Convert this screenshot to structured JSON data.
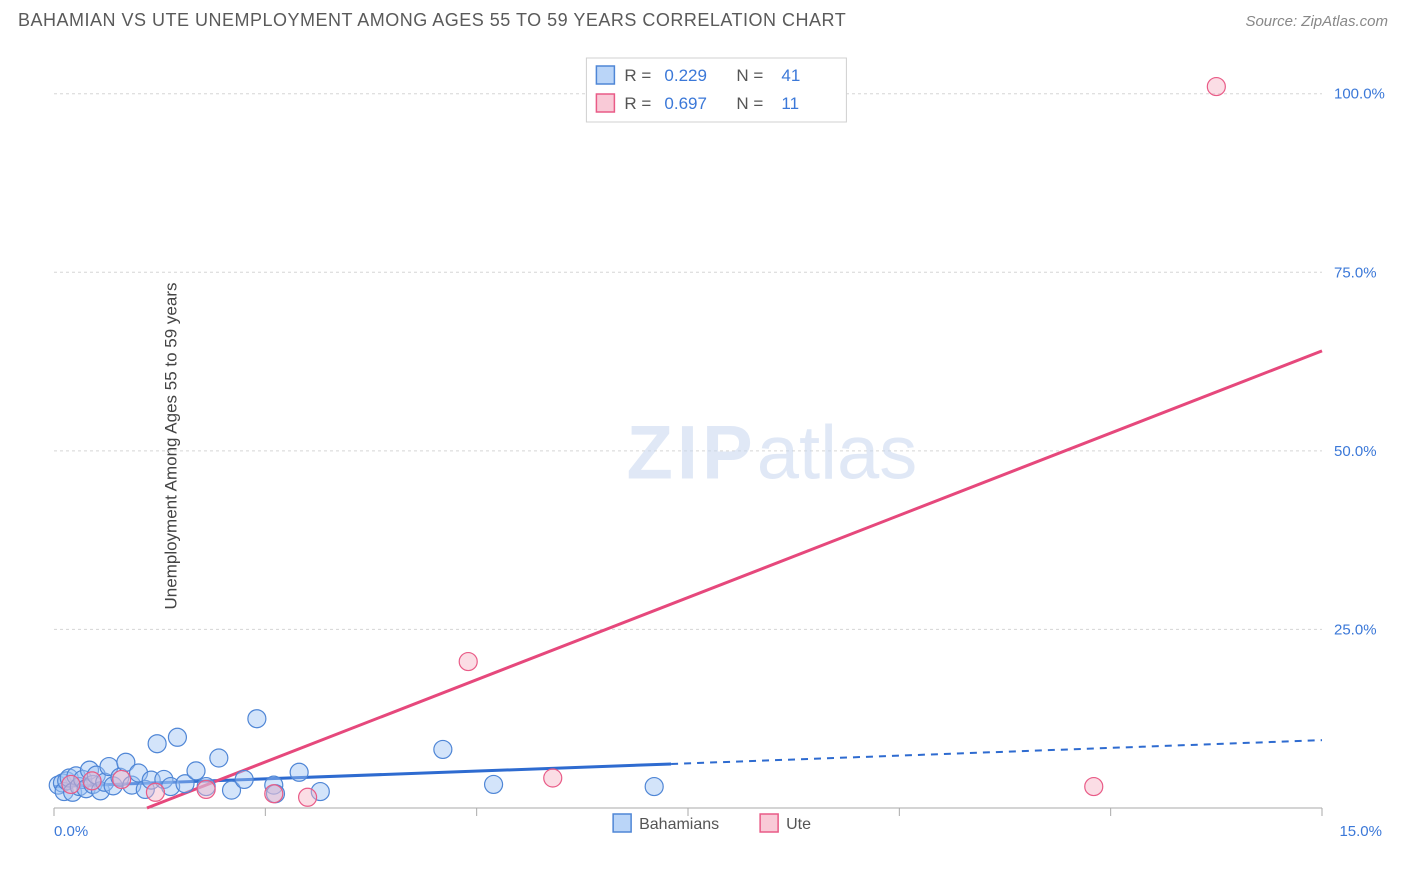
{
  "title": "BAHAMIAN VS UTE UNEMPLOYMENT AMONG AGES 55 TO 59 YEARS CORRELATION CHART",
  "source": "Source: ZipAtlas.com",
  "y_axis_label": "Unemployment Among Ages 55 to 59 years",
  "watermark": {
    "bold": "ZIP",
    "light": "atlas"
  },
  "chart": {
    "type": "scatter",
    "xlim": [
      0,
      15
    ],
    "ylim": [
      0,
      105
    ],
    "x_ticks": [
      0,
      2.5,
      5,
      7.5,
      10,
      12.5,
      15
    ],
    "x_tick_labels": {
      "0": "0.0%",
      "15": "15.0%"
    },
    "y_ticks": [
      25,
      50,
      75,
      100
    ],
    "y_tick_labels": {
      "25": "25.0%",
      "50": "50.0%",
      "75": "75.0%",
      "100": "100.0%"
    },
    "grid_color": "#d5d5d5",
    "axis_color": "#aaaaaa",
    "background_color": "#ffffff",
    "watermark_color": "#c8d7ef",
    "tick_label_color": "#3b78d8",
    "marker_radius": 9,
    "marker_opacity": 0.45,
    "trend_line_width": 3
  },
  "series": [
    {
      "key": "bahamians",
      "label": "Bahamians",
      "color_fill": "#9dc3f5",
      "color_stroke": "#4f86d6",
      "trend_color": "#2e6bd0",
      "R": "0.229",
      "N": "41",
      "trend": {
        "x1": 0,
        "y1": 3.0,
        "x2": 15,
        "y2": 9.5,
        "solid_split_x": 7.3
      },
      "points": [
        [
          0.05,
          3.2
        ],
        [
          0.1,
          3.5
        ],
        [
          0.12,
          2.3
        ],
        [
          0.15,
          3.8
        ],
        [
          0.18,
          4.2
        ],
        [
          0.22,
          2.2
        ],
        [
          0.26,
          4.5
        ],
        [
          0.3,
          3.0
        ],
        [
          0.34,
          4.0
        ],
        [
          0.38,
          2.7
        ],
        [
          0.42,
          5.3
        ],
        [
          0.46,
          3.3
        ],
        [
          0.5,
          4.6
        ],
        [
          0.55,
          2.4
        ],
        [
          0.6,
          3.6
        ],
        [
          0.65,
          5.8
        ],
        [
          0.7,
          3.1
        ],
        [
          0.78,
          4.3
        ],
        [
          0.85,
          6.4
        ],
        [
          0.92,
          3.2
        ],
        [
          1.0,
          4.9
        ],
        [
          1.08,
          2.6
        ],
        [
          1.15,
          3.9
        ],
        [
          1.22,
          9.0
        ],
        [
          1.3,
          4.0
        ],
        [
          1.38,
          3.0
        ],
        [
          1.46,
          9.9
        ],
        [
          1.55,
          3.4
        ],
        [
          1.68,
          5.2
        ],
        [
          1.8,
          3.0
        ],
        [
          1.95,
          7.0
        ],
        [
          2.1,
          2.5
        ],
        [
          2.25,
          4.0
        ],
        [
          2.4,
          12.5
        ],
        [
          2.6,
          3.2
        ],
        [
          2.62,
          2.0
        ],
        [
          2.9,
          5.0
        ],
        [
          3.15,
          2.3
        ],
        [
          4.6,
          8.2
        ],
        [
          5.2,
          3.3
        ],
        [
          7.1,
          3.0
        ]
      ]
    },
    {
      "key": "ute",
      "label": "Ute",
      "color_fill": "#f6b4c6",
      "color_stroke": "#e95b87",
      "trend_color": "#e6487c",
      "R": "0.697",
      "N": "11",
      "trend": {
        "x1": 1.1,
        "y1": 0,
        "x2": 15,
        "y2": 64,
        "solid_split_x": 15
      },
      "points": [
        [
          0.2,
          3.3
        ],
        [
          0.45,
          3.8
        ],
        [
          0.8,
          4.0
        ],
        [
          1.2,
          2.2
        ],
        [
          1.8,
          2.6
        ],
        [
          2.6,
          2.0
        ],
        [
          3.0,
          1.5
        ],
        [
          4.9,
          20.5
        ],
        [
          5.9,
          4.2
        ],
        [
          12.3,
          3.0
        ],
        [
          13.75,
          101.0
        ]
      ]
    }
  ],
  "stats_box": {
    "labels": {
      "R": "R =",
      "N": "N ="
    }
  },
  "legend": {
    "items": [
      {
        "series": "bahamians",
        "label": "Bahamians"
      },
      {
        "series": "ute",
        "label": "Ute"
      }
    ]
  }
}
